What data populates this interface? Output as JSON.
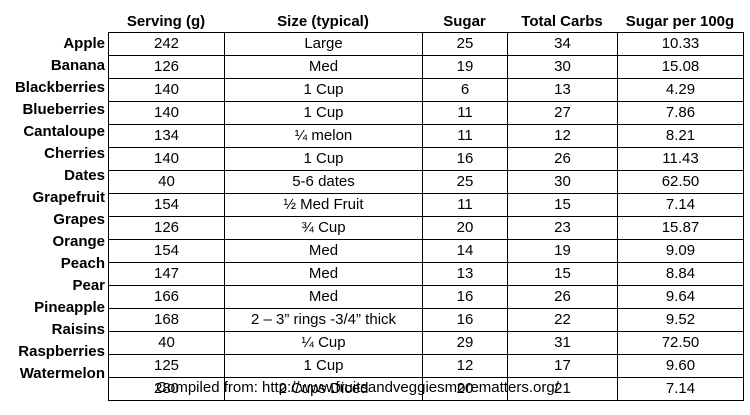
{
  "headers": {
    "serving": "Serving (g)",
    "size": "Size (typical)",
    "sugar": "Sugar",
    "total_carbs": "Total Carbs",
    "sugar_per_100g": "Sugar per 100g"
  },
  "rows": [
    {
      "fruit": "Apple",
      "serving": "242",
      "size": "Large",
      "sugar": "25",
      "total_carbs": "34",
      "sugar_per_100g": "10.33"
    },
    {
      "fruit": "Banana",
      "serving": "126",
      "size": "Med",
      "sugar": "19",
      "total_carbs": "30",
      "sugar_per_100g": "15.08"
    },
    {
      "fruit": "Blackberries",
      "serving": "140",
      "size": "1 Cup",
      "sugar": "6",
      "total_carbs": "13",
      "sugar_per_100g": "4.29"
    },
    {
      "fruit": "Blueberries",
      "serving": "140",
      "size": "1 Cup",
      "sugar": "11",
      "total_carbs": "27",
      "sugar_per_100g": "7.86"
    },
    {
      "fruit": "Cantaloupe",
      "serving": "134",
      "size": "¼ melon",
      "sugar": "11",
      "total_carbs": "12",
      "sugar_per_100g": "8.21"
    },
    {
      "fruit": "Cherries",
      "serving": "140",
      "size": "1 Cup",
      "sugar": "16",
      "total_carbs": "26",
      "sugar_per_100g": "11.43"
    },
    {
      "fruit": "Dates",
      "serving": "40",
      "size": "5-6 dates",
      "sugar": "25",
      "total_carbs": "30",
      "sugar_per_100g": "62.50"
    },
    {
      "fruit": "Grapefruit",
      "serving": "154",
      "size": "½ Med Fruit",
      "sugar": "11",
      "total_carbs": "15",
      "sugar_per_100g": "7.14"
    },
    {
      "fruit": "Grapes",
      "serving": "126",
      "size": "¾ Cup",
      "sugar": "20",
      "total_carbs": "23",
      "sugar_per_100g": "15.87"
    },
    {
      "fruit": "Orange",
      "serving": "154",
      "size": "Med",
      "sugar": "14",
      "total_carbs": "19",
      "sugar_per_100g": "9.09"
    },
    {
      "fruit": "Peach",
      "serving": "147",
      "size": "Med",
      "sugar": "13",
      "total_carbs": "15",
      "sugar_per_100g": "8.84"
    },
    {
      "fruit": "Pear",
      "serving": "166",
      "size": "Med",
      "sugar": "16",
      "total_carbs": "26",
      "sugar_per_100g": "9.64"
    },
    {
      "fruit": "Pineapple",
      "serving": "168",
      "size": "2 – 3” rings -3/4” thick",
      "sugar": "16",
      "total_carbs": "22",
      "sugar_per_100g": "9.52"
    },
    {
      "fruit": "Raisins",
      "serving": "40",
      "size": "¼ Cup",
      "sugar": "29",
      "total_carbs": "31",
      "sugar_per_100g": "72.50"
    },
    {
      "fruit": "Raspberries",
      "serving": "125",
      "size": "1 Cup",
      "sugar": "12",
      "total_carbs": "17",
      "sugar_per_100g": "9.60"
    },
    {
      "fruit": "Watermelon",
      "serving": "280",
      "size": "2 Cups Diced",
      "sugar": "20",
      "total_carbs": "21",
      "sugar_per_100g": "7.14"
    }
  ],
  "footer": "Compiled from: http://www.fruitsandveggiesmorematters.org/"
}
